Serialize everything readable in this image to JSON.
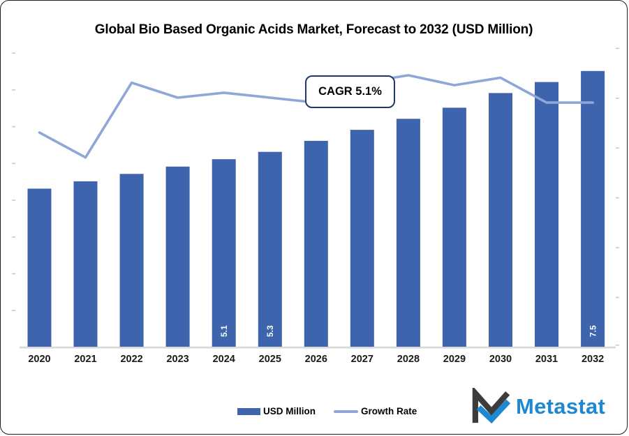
{
  "title": "Global Bio Based Organic Acids Market, Forecast to 2032 (USD Million)",
  "annotation": {
    "cagr_label": "CAGR 5.1%"
  },
  "legend": {
    "bar_label": "USD Million",
    "line_label": "Growth Rate"
  },
  "logo": {
    "text": "Metastat"
  },
  "colors": {
    "bar": "#3D64AC",
    "line": "#8FA6D9",
    "annotation_border": "#1F3864",
    "axis_line": "#D9D9D9",
    "tick": "#C9C9C9",
    "x_label": "#1A1A1A",
    "bar_label_text": "#FFFFFF",
    "logo_blue": "#1E88D2",
    "logo_dark": "#3C3C3C"
  },
  "chart_data": {
    "type": "bar",
    "title": "Global Bio Based Organic Acids Market, Forecast to 2032 (USD Million)",
    "categories": [
      "2020",
      "2021",
      "2022",
      "2023",
      "2024",
      "2025",
      "2026",
      "2027",
      "2028",
      "2029",
      "2030",
      "2031",
      "2032"
    ],
    "series": [
      {
        "name": "USD Million",
        "type": "bar",
        "values": [
          4.3,
          4.5,
          4.7,
          4.9,
          5.1,
          5.3,
          5.6,
          5.9,
          6.2,
          6.5,
          6.9,
          7.2,
          7.5
        ],
        "data_labels": [
          null,
          null,
          null,
          null,
          "5.1",
          "5.3",
          null,
          null,
          null,
          null,
          null,
          null,
          "7.5"
        ]
      },
      {
        "name": "Growth Rate",
        "type": "line",
        "values": [
          4.3,
          3.8,
          5.3,
          5.0,
          5.1,
          5.0,
          4.9,
          5.3,
          5.45,
          5.25,
          5.4,
          4.9,
          4.9
        ]
      }
    ],
    "annotation": "CAGR 5.1%",
    "left_axis": {
      "min": 0,
      "max": 8.4,
      "tick_step": 1,
      "tick_count": 9,
      "labels_visible": false
    },
    "right_axis": {
      "min": 0,
      "max": 6.3,
      "tick_step": 1,
      "tick_count": 7,
      "labels_visible": false
    },
    "grid": false,
    "legend_position": "bottom"
  }
}
